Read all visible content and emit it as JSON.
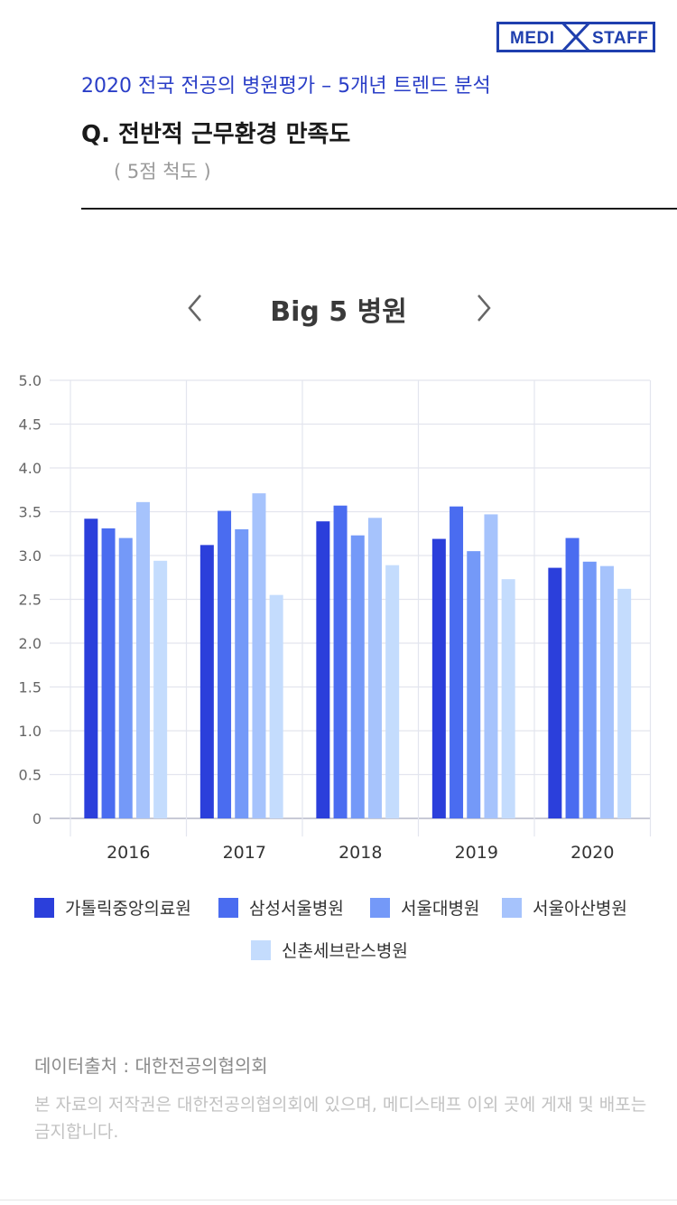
{
  "logo": {
    "left": "MEDI",
    "right": "STAFF"
  },
  "header": {
    "subtitle": "2020 전국 전공의 병원평가 – 5개년 트렌드 분석",
    "question": "Q. 전반적 근무환경 만족도",
    "scale_note": "( 5점 척도 )"
  },
  "nav": {
    "title": "Big 5 병원",
    "prev_icon": "chevron-left-icon",
    "next_icon": "chevron-right-icon"
  },
  "chart_data": {
    "type": "bar",
    "categories": [
      "2016",
      "2017",
      "2018",
      "2019",
      "2020"
    ],
    "ylim": [
      0,
      5
    ],
    "yticks": [
      "0",
      "0.5",
      "1.0",
      "1.5",
      "2.0",
      "2.5",
      "3.0",
      "3.5",
      "4.0",
      "4.5",
      "5.0"
    ],
    "grid": true,
    "legend_position": "bottom",
    "series": [
      {
        "name": "가톨릭중앙의료원",
        "color": "#2b3fdb",
        "values": [
          3.42,
          3.12,
          3.39,
          3.19,
          2.86
        ]
      },
      {
        "name": "삼성서울병원",
        "color": "#4a6cf0",
        "values": [
          3.31,
          3.51,
          3.57,
          3.56,
          3.2
        ]
      },
      {
        "name": "서울대병원",
        "color": "#7499f8",
        "values": [
          3.2,
          3.3,
          3.23,
          3.05,
          2.93
        ]
      },
      {
        "name": "서울아산병원",
        "color": "#a6c3fc",
        "values": [
          3.61,
          3.71,
          3.43,
          3.47,
          2.88
        ]
      },
      {
        "name": "신촌세브란스병원",
        "color": "#c4dcfd",
        "values": [
          2.94,
          2.55,
          2.89,
          2.73,
          2.62
        ]
      }
    ]
  },
  "footer": {
    "source": "데이터출처 : 대한전공의협의회",
    "copyright": "본 자료의 저작권은 대한전공의협의회에 있으며, 메디스태프 이외 곳에 게재 및 배포는 금지합니다."
  }
}
